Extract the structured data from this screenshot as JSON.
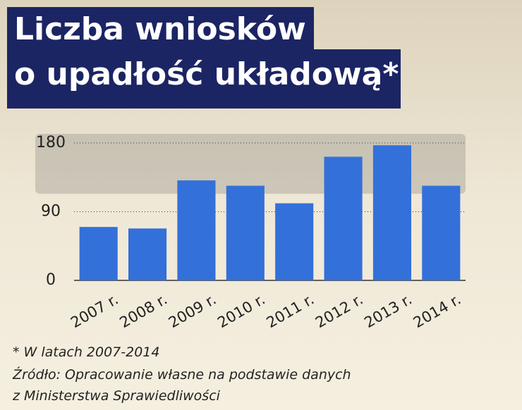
{
  "chart_data": {
    "type": "bar",
    "title": [
      "Liczba wniosków",
      "o upadłość układową*"
    ],
    "categories": [
      "2007 r.",
      "2008 r.",
      "2009 r.",
      "2010 r.",
      "2011 r.",
      "2012 r.",
      "2013 r.",
      "2014 r."
    ],
    "values": [
      70,
      68,
      131,
      124,
      101,
      162,
      177,
      124
    ],
    "color": "#3470d9",
    "ylim": [
      0,
      180
    ],
    "yticks": [
      0,
      90,
      180
    ],
    "grid": true,
    "notes": [
      "* W latach 2007-2014",
      "Źródło: Opracowanie własne na podstawie danych",
      "z Ministerstwa Sprawiedliwości"
    ]
  }
}
